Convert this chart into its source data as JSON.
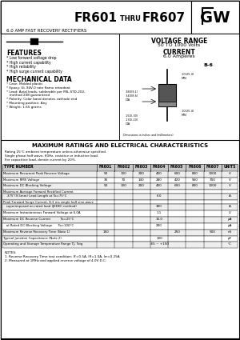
{
  "title_bold1": "FR601",
  "title_small": " THRU ",
  "title_bold2": "FR607",
  "subtitle": "6.0 AMP FAST RECOVERY RECTIFIERS",
  "voltage_range_line1": "VOLTAGE RANGE",
  "voltage_range_line2": "50 TO 1000 Volts",
  "current_line1": "CURRENT",
  "current_line2": "6.0 Amperes",
  "features_title": "FEATURES",
  "features": [
    "* Low forward voltage drop",
    "* High current capability",
    "* High reliability",
    "* High surge current capability"
  ],
  "mech_title": "MECHANICAL DATA",
  "mech": [
    "* Case: Molded plastic",
    "* Epoxy: UL 94V-0 rate flame retardant",
    "* Lead: Axial leads, solderable per MIL-STD-202,",
    "   method 208 guaranteed",
    "* Polarity: Color band denotes cathode end",
    "* Mounting position: Any",
    "* Weight: 1.65 grams"
  ],
  "table_title": "MAXIMUM RATINGS AND ELECTRICAL CHARACTERISTICS",
  "table_note1": "Rating 25°C ambient temperature unless otherwise specified.",
  "table_note2": "Single phase half wave, 60Hz, resistive or inductive load.",
  "table_note3": "For capacitive load, derate current by 20%.",
  "col_headers": [
    "TYPE NUMBER",
    "FR601",
    "FR602",
    "FR603",
    "FR604",
    "FR605",
    "FR606",
    "FR607",
    "UNITS"
  ],
  "rows": [
    {
      "label": "Maximum Recurrent Peak Reverse Voltage",
      "vals": [
        "50",
        "100",
        "200",
        "400",
        "600",
        "800",
        "1000"
      ],
      "unit": "V"
    },
    {
      "label": "Maximum RMS Voltage",
      "vals": [
        "35",
        "70",
        "140",
        "280",
        "420",
        "560",
        "700"
      ],
      "unit": "V"
    },
    {
      "label": "Maximum DC Blocking Voltage",
      "vals": [
        "50",
        "100",
        "200",
        "400",
        "600",
        "800",
        "1000"
      ],
      "unit": "V"
    },
    {
      "label": "Maximum Average Forward Rectified Current",
      "vals": [
        "",
        "",
        "",
        "",
        "",
        "",
        ""
      ],
      "unit": ""
    },
    {
      "label": "   .375\"(9.5mm) Lead Length at Ta=75°C",
      "vals": [
        "",
        "",
        "",
        "6.0",
        "",
        "",
        ""
      ],
      "unit": "A"
    },
    {
      "label": "Peak Forward Surge Current, 8.3 ms single half sine-wave",
      "vals": [
        "",
        "",
        "",
        "",
        "",
        "",
        ""
      ],
      "unit": ""
    },
    {
      "label": "   superimposed on rated load (JEDEC method)",
      "vals": [
        "",
        "",
        "",
        "300",
        "",
        "",
        ""
      ],
      "unit": "A"
    },
    {
      "label": "Maximum Instantaneous Forward Voltage at 6.0A",
      "vals": [
        "",
        "",
        "",
        "1.1",
        "",
        "",
        ""
      ],
      "unit": "V"
    },
    {
      "label": "Maximum DC Reverse Current          Ta=25°C",
      "vals": [
        "",
        "",
        "",
        "10.0",
        "",
        "",
        ""
      ],
      "unit": "μA"
    },
    {
      "label": "   at Rated DC Blocking Voltage      Ta=100°C",
      "vals": [
        "",
        "",
        "",
        "200",
        "",
        "",
        ""
      ],
      "unit": "μA"
    },
    {
      "label": "Maximum Reverse Recovery Time (Note 1)",
      "vals": [
        "150",
        "",
        "",
        "",
        "250",
        "",
        "500"
      ],
      "unit": "nS"
    },
    {
      "label": "Typical Junction Capacitance (Note 2)",
      "vals": [
        "",
        "",
        "",
        "100",
        "",
        "",
        ""
      ],
      "unit": "pF"
    },
    {
      "label": "Operating and Storage Temperature Range TJ, Tstg",
      "vals": [
        "",
        "",
        "",
        "-65 ~ +150",
        "",
        "",
        ""
      ],
      "unit": "°C"
    }
  ],
  "notes": [
    "NOTES:",
    "1. Reverse Recovery Time test condition: IF=0.5A, IR=1.0A, Irr=0.25A",
    "2. Measured at 1MHz and applied reverse voltage of 4.0V D.C."
  ],
  "pkg_label": "B-6",
  "pkg_dim1a": ".380(9.1)",
  "pkg_dim1b": ".340(8.6)",
  "pkg_dim1c": "DIA",
  "pkg_dim2a": "1.0(25.4)",
  "pkg_dim2b": "MIN",
  "pkg_dim3a": ".150(.30)",
  "pkg_dim3b": ".130(.20)",
  "pkg_dim3c": "DIA",
  "pkg_dim4a": "1.0(25.4)",
  "pkg_dim4b": "MIN",
  "pkg_note": "Dimensions in inches and (millimeters)"
}
